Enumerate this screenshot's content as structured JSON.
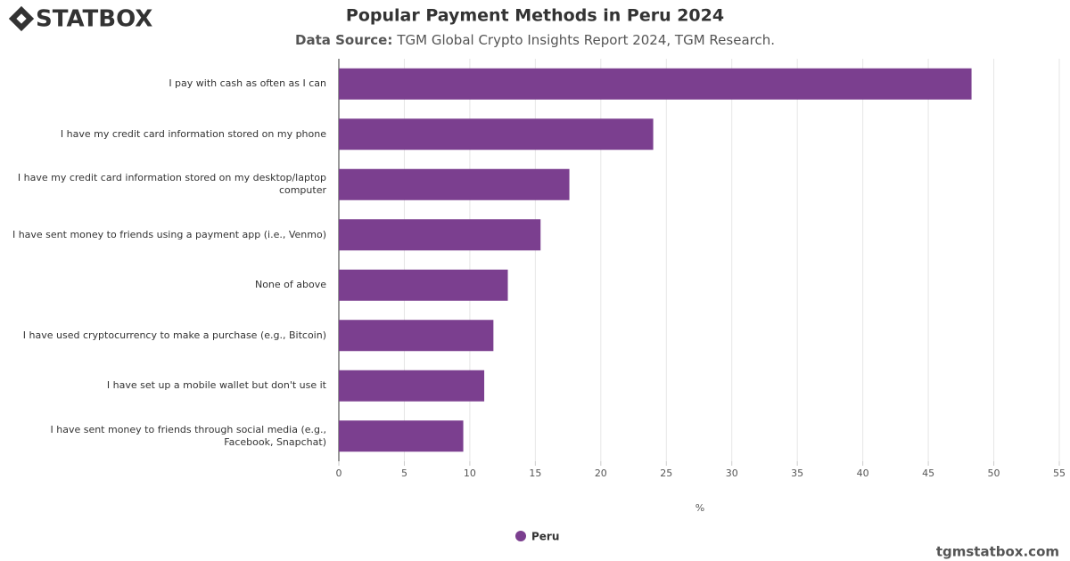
{
  "brand": "STATBOX",
  "footer": "tgmstatbox.com",
  "chart_data": {
    "type": "hbar",
    "title": "Popular Payment Methods in Peru 2024",
    "subtitle_label": "Data Source:",
    "subtitle": "TGM Global Crypto Insights Report 2024, TGM Research.",
    "x_label": "%",
    "categories": [
      "I pay with cash as often as I can",
      "I have my credit card information stored on my phone",
      "I have my credit card information stored on my desktop/laptop computer",
      "I have sent money to friends using a payment app (i.e., Venmo)",
      "None of above",
      "I have used cryptocurrency to make a purchase (e.g., Bitcoin)",
      "I have set up a mobile wallet but don't use it",
      "I have sent money to friends through social media (e.g., Facebook, Snapchat)"
    ],
    "series": [
      {
        "name": "Peru",
        "color": "#7b3f8f",
        "values": [
          48.3,
          24.0,
          17.6,
          15.4,
          12.9,
          11.8,
          11.1,
          9.5
        ]
      }
    ],
    "xlim": [
      0,
      55
    ],
    "xticks": [
      0,
      5,
      10,
      15,
      20,
      25,
      30,
      35,
      40,
      45,
      50,
      55
    ],
    "grid": true
  }
}
